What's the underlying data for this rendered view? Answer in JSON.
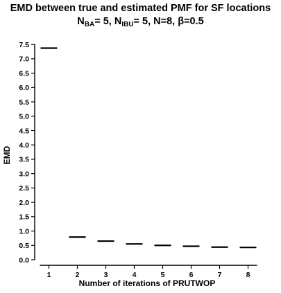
{
  "chart_data": {
    "type": "scatter",
    "title": "EMD between true and estimated PMF for SF locations",
    "subtitle": {
      "n_ba_label": "N",
      "n_ba_sub": "BA",
      "n_ba_value": "= 5, ",
      "n_ibu_label": "N",
      "n_ibu_sub": "IBU",
      "n_ibu_value": "= 5, N=8, ",
      "beta_symbol": "β",
      "beta_value": "=0.5"
    },
    "xlabel": "Number of iterations of PRUTWOP",
    "ylabel": "EMD",
    "x": [
      1,
      2,
      3,
      4,
      5,
      6,
      7,
      8
    ],
    "y": [
      7.37,
      0.79,
      0.65,
      0.55,
      0.5,
      0.47,
      0.44,
      0.43
    ],
    "xticks": [
      "1",
      "2",
      "3",
      "4",
      "5",
      "6",
      "7",
      "8"
    ],
    "yticks": [
      "0.0",
      "0.5",
      "1.0",
      "1.5",
      "2.0",
      "2.5",
      "3.0",
      "3.5",
      "4.0",
      "4.5",
      "5.0",
      "5.5",
      "6.0",
      "6.5",
      "7.0",
      "7.5"
    ],
    "xlim": [
      0.5,
      8.5
    ],
    "ylim": [
      0,
      7.6
    ],
    "marker": "horizontal-bar",
    "grid": false,
    "color": "#000000"
  }
}
